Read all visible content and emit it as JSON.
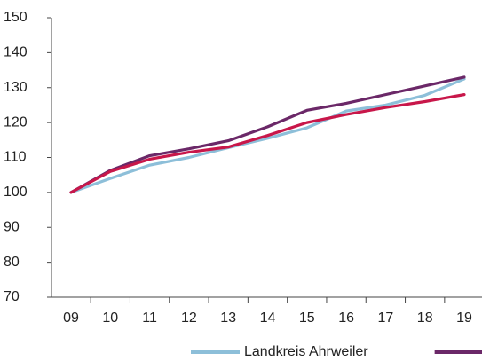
{
  "chart_data": {
    "type": "line",
    "categories": [
      "09",
      "10",
      "11",
      "12",
      "13",
      "14",
      "15",
      "16",
      "17",
      "18",
      "19"
    ],
    "series": [
      {
        "name": "Landkreis Ahrweiler",
        "color": "#8dbfd9",
        "values": [
          100,
          104,
          107.8,
          110,
          112.8,
          115.5,
          118.5,
          123.3,
          125,
          127.8,
          132.5
        ]
      },
      {
        "color": "#6b2868",
        "values": [
          100,
          106.3,
          110.5,
          112.5,
          114.8,
          118.8,
          123.5,
          125.5,
          128,
          130.5,
          133
        ]
      },
      {
        "color": "#c8174a",
        "values": [
          100,
          106,
          109.5,
          111.5,
          113,
          116.3,
          120,
          122.3,
          124.3,
          126,
          128
        ]
      }
    ],
    "ylim": [
      70,
      150
    ],
    "yticks": [
      70,
      80,
      90,
      100,
      110,
      120,
      130,
      140,
      150
    ],
    "grid": false
  }
}
